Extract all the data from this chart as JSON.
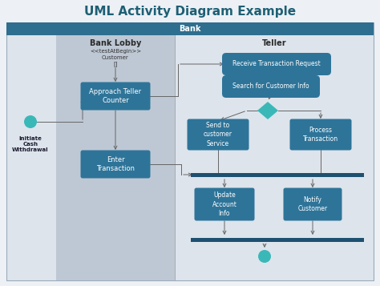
{
  "title": "UML Activity Diagram Example",
  "title_fontsize": 11,
  "title_color": "#1e5f74",
  "background_color": "#edf1f5",
  "header_color": "#2e6e8e",
  "header_text_color": "#ffffff",
  "box_color": "#2e7499",
  "box_text_color": "#ffffff",
  "diamond_color": "#3ab8b8",
  "start_end_color": "#3ab8b8",
  "sync_bar_color": "#1e5070",
  "arrow_color": "#666666",
  "swimlane_bg": "#bec8d4",
  "outer_bg": "#dde4ec",
  "bank_header": "Bank",
  "lane1_header": "Bank Lobby",
  "lane2_header": "Teller",
  "initiate_label": "Initiate\nCash\nWithdrawal",
  "node_testatbegin": "<<testAtBegin>>\nCustomer\n[]",
  "node_approach": "Approach Teller\nCounter",
  "node_enter": "Enter\nTransaction",
  "node_receive": "Receive Transaction Request",
  "node_search": "Search for Customer Info",
  "node_send": "Send to\ncustomer\nService",
  "node_process": "Process\nTransaction",
  "node_update": "Update\nAccount\nInfo",
  "node_notify": "Notify\nCustomer"
}
